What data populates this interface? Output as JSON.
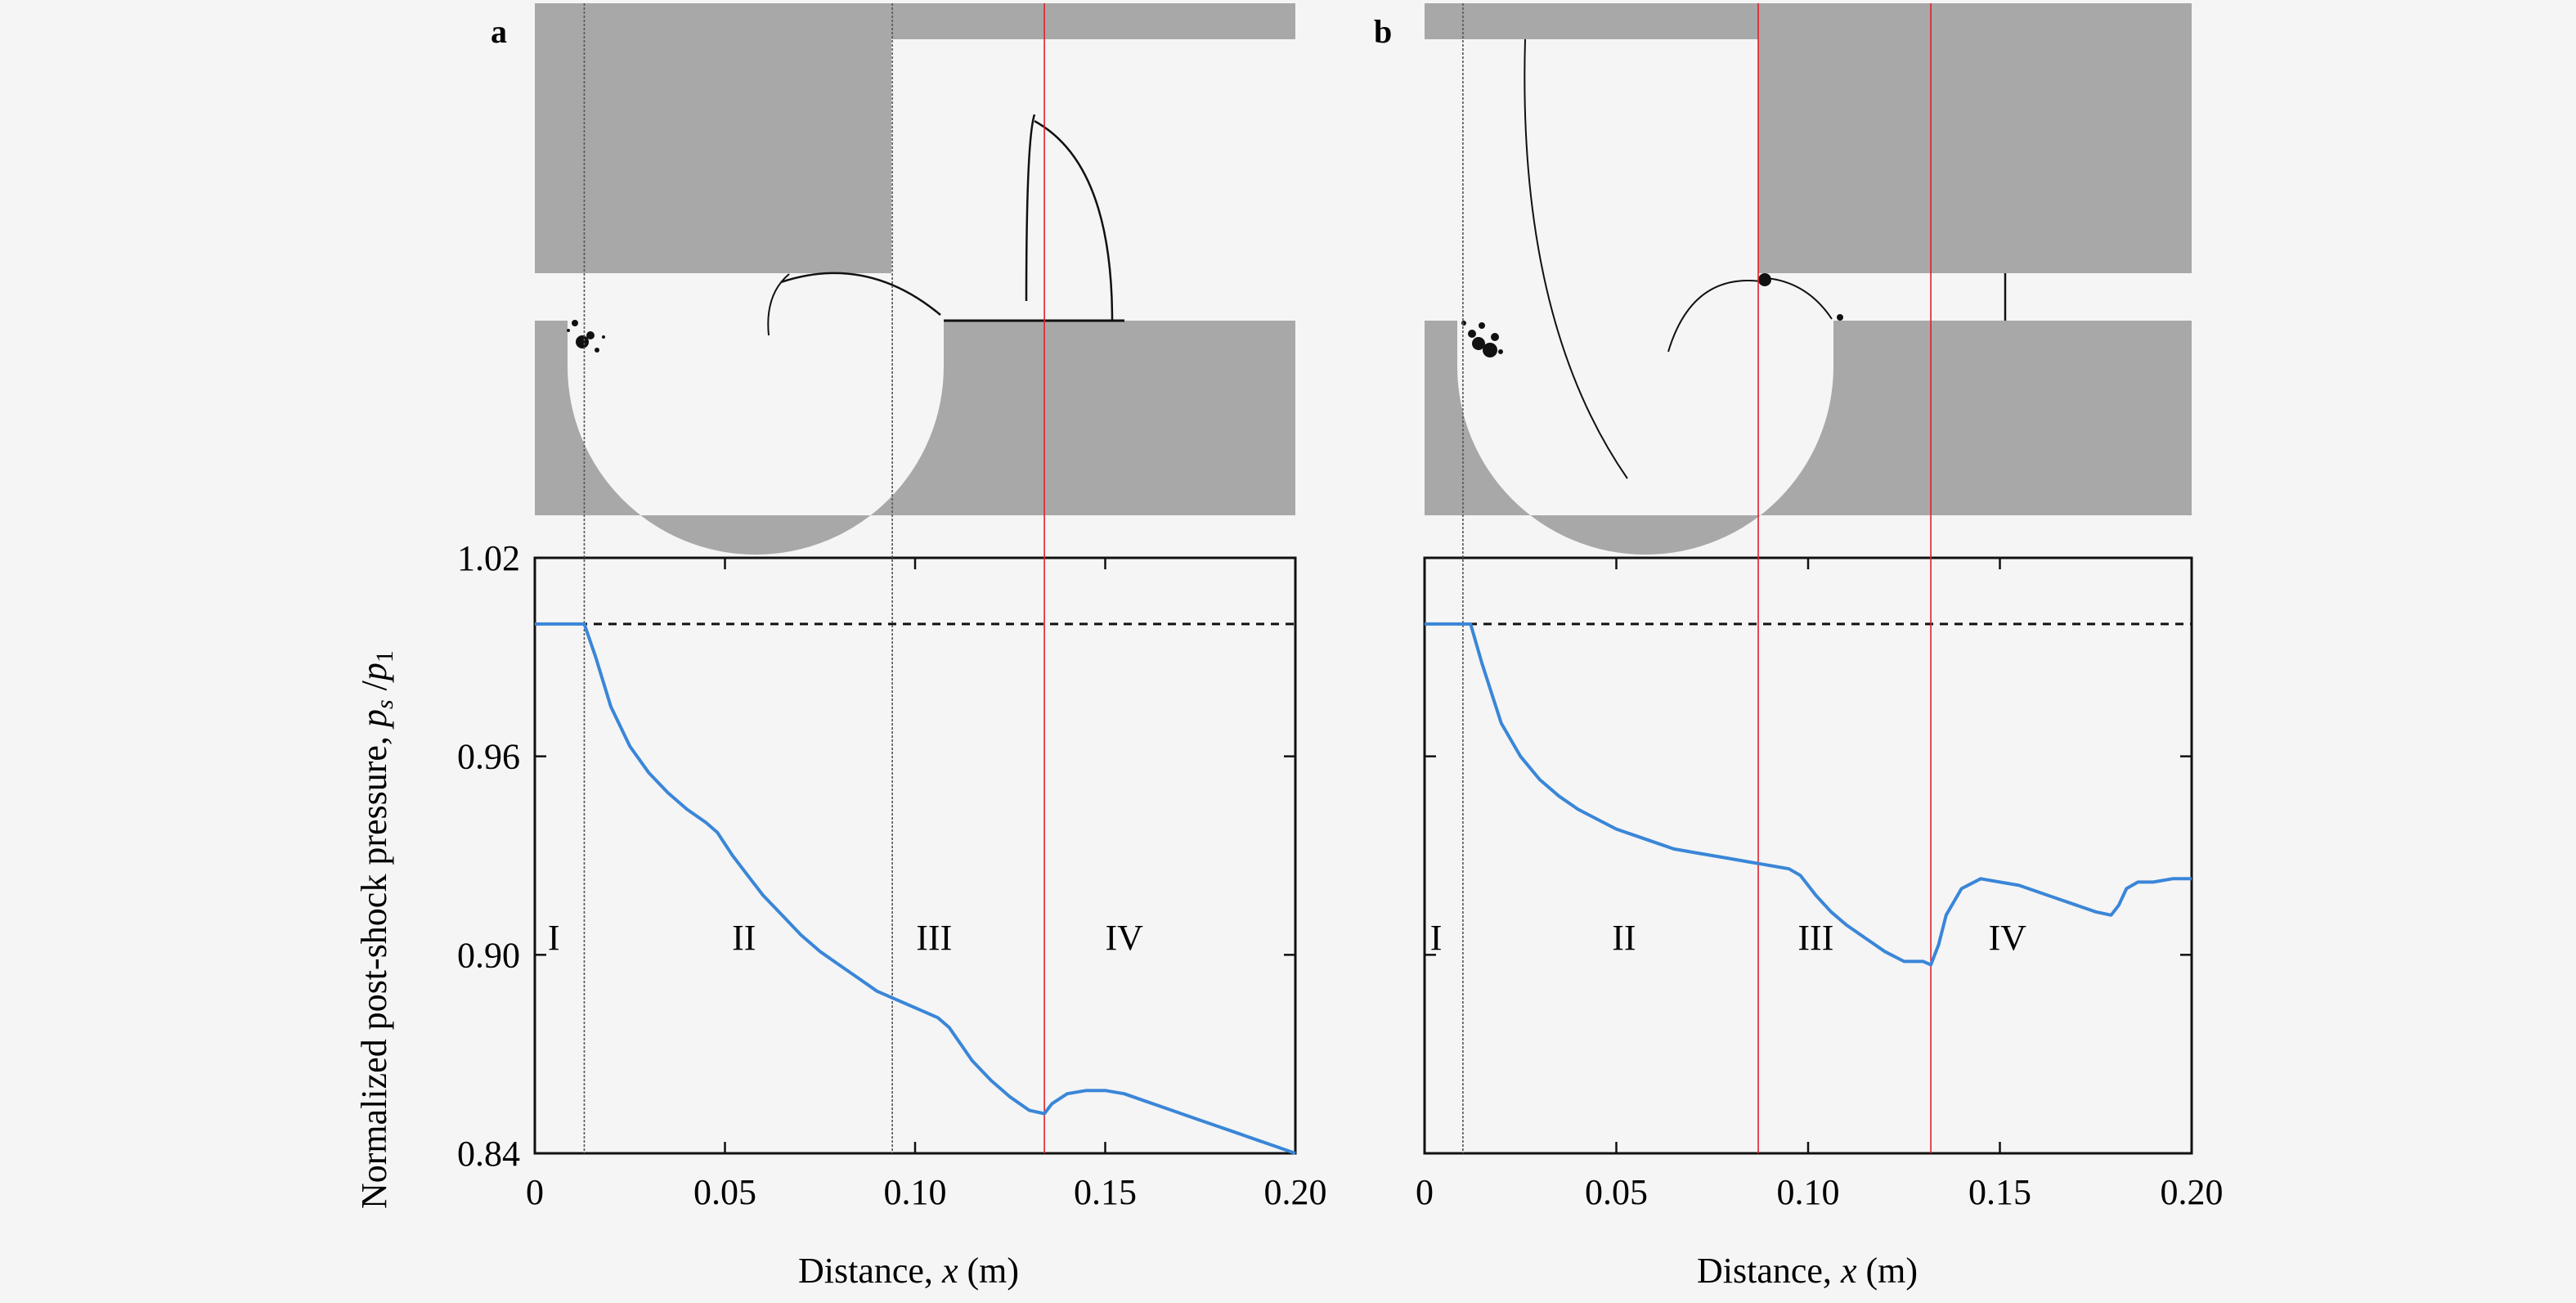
{
  "figure": {
    "ylabel_main": "Normalized post-shock pressure, ",
    "ylabel_ps": "p",
    "ylabel_ps_sub": "s",
    "ylabel_slash": " /",
    "ylabel_p1": "p",
    "ylabel_p1_sub": "1",
    "xlabel_main": "Distance, ",
    "xlabel_var": "x",
    "xlabel_unit": " (m)"
  },
  "chart_data": [
    {
      "panel": "a",
      "type": "line",
      "xlim": [
        0,
        0.2
      ],
      "ylim": [
        0.84,
        1.02
      ],
      "x_ticks": [
        "0",
        "0.05",
        "0.10",
        "0.15",
        "0.20"
      ],
      "y_ticks": [
        "0.84",
        "0.90",
        "0.96",
        "1.02"
      ],
      "reference_line": {
        "y": 1.0,
        "style": "dashed"
      },
      "region_boundaries": [
        0.013,
        0.094,
        0.134
      ],
      "region_labels": [
        {
          "text": "I",
          "x": 0.005,
          "y": 0.909
        },
        {
          "text": "II",
          "x": 0.055,
          "y": 0.909
        },
        {
          "text": "III",
          "x": 0.105,
          "y": 0.909
        },
        {
          "text": "IV",
          "x": 0.155,
          "y": 0.909
        }
      ],
      "series": [
        {
          "color": "#3a86d8",
          "x": [
            0,
            0.01,
            0.013,
            0.016,
            0.02,
            0.025,
            0.03,
            0.035,
            0.04,
            0.045,
            0.048,
            0.052,
            0.056,
            0.06,
            0.065,
            0.07,
            0.075,
            0.08,
            0.085,
            0.09,
            0.094,
            0.098,
            0.102,
            0.106,
            0.109,
            0.112,
            0.115,
            0.12,
            0.125,
            0.13,
            0.134,
            0.136,
            0.14,
            0.145,
            0.15,
            0.155,
            0.16,
            0.165,
            0.17,
            0.175,
            0.18,
            0.185,
            0.19,
            0.195,
            0.2
          ],
          "y": [
            1.0,
            1.0,
            1.0,
            0.99,
            0.975,
            0.963,
            0.955,
            0.949,
            0.944,
            0.94,
            0.937,
            0.93,
            0.924,
            0.918,
            0.912,
            0.906,
            0.901,
            0.897,
            0.893,
            0.889,
            0.887,
            0.885,
            0.883,
            0.881,
            0.878,
            0.873,
            0.868,
            0.862,
            0.857,
            0.853,
            0.852,
            0.855,
            0.858,
            0.859,
            0.859,
            0.858,
            0.856,
            0.854,
            0.852,
            0.85,
            0.848,
            0.846,
            0.844,
            0.842,
            0.84
          ]
        }
      ]
    },
    {
      "panel": "b",
      "type": "line",
      "xlim": [
        0,
        0.2
      ],
      "ylim": [
        0.84,
        1.02
      ],
      "x_ticks": [
        "0",
        "0.05",
        "0.10",
        "0.15",
        "0.20"
      ],
      "y_ticks": [
        "0.84",
        "0.90",
        "0.96",
        "1.02"
      ],
      "reference_line": {
        "y": 1.0,
        "style": "dashed"
      },
      "region_boundaries": [
        0.01,
        0.087,
        0.132
      ],
      "region_labels": [
        {
          "text": "I",
          "x": 0.003,
          "y": 0.909
        },
        {
          "text": "II",
          "x": 0.052,
          "y": 0.909
        },
        {
          "text": "III",
          "x": 0.102,
          "y": 0.909
        },
        {
          "text": "IV",
          "x": 0.152,
          "y": 0.909
        }
      ],
      "series": [
        {
          "color": "#3a86d8",
          "x": [
            0,
            0.01,
            0.012,
            0.015,
            0.02,
            0.025,
            0.03,
            0.035,
            0.04,
            0.045,
            0.05,
            0.055,
            0.06,
            0.065,
            0.07,
            0.075,
            0.08,
            0.085,
            0.09,
            0.095,
            0.098,
            0.102,
            0.106,
            0.11,
            0.115,
            0.12,
            0.125,
            0.13,
            0.132,
            0.134,
            0.136,
            0.14,
            0.145,
            0.15,
            0.155,
            0.16,
            0.165,
            0.17,
            0.175,
            0.179,
            0.181,
            0.183,
            0.186,
            0.19,
            0.195,
            0.2
          ],
          "y": [
            1.0,
            1.0,
            1.0,
            0.988,
            0.97,
            0.96,
            0.953,
            0.948,
            0.944,
            0.941,
            0.938,
            0.936,
            0.934,
            0.932,
            0.931,
            0.93,
            0.929,
            0.928,
            0.927,
            0.926,
            0.924,
            0.918,
            0.913,
            0.909,
            0.905,
            0.901,
            0.898,
            0.898,
            0.897,
            0.903,
            0.912,
            0.92,
            0.923,
            0.922,
            0.921,
            0.919,
            0.917,
            0.915,
            0.913,
            0.912,
            0.915,
            0.92,
            0.922,
            0.922,
            0.923,
            0.923
          ]
        }
      ]
    }
  ],
  "panels": [
    {
      "label": "a",
      "geometry": {
        "upper_wall_step_x": 0.094,
        "lower_wall_start_x": 0.108,
        "cavity_start_x": 0.0,
        "wedge_width_x": 0.108
      }
    },
    {
      "label": "b",
      "geometry": {
        "upper_wall_step_x": 0.087,
        "lower_wall_start_x": 0.107,
        "cavity_start_x": 0.0,
        "wedge_width_x": 0.107
      }
    }
  ],
  "colors": {
    "wall": "#a8a8a8",
    "line": "#3a86d8",
    "guide": "#555555",
    "guide_red": "#e0202a"
  }
}
